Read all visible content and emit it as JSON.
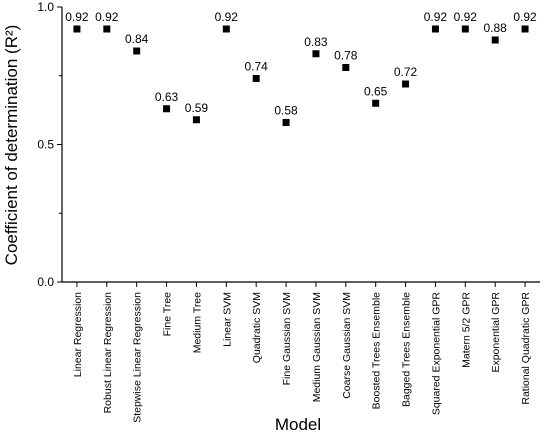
{
  "chart_data": {
    "type": "scatter",
    "title": "",
    "xlabel": "Model",
    "ylabel": "Coefficient of determination (R²)",
    "ylim": [
      0.0,
      1.0
    ],
    "yticks": [
      0.0,
      0.5,
      1.0
    ],
    "ytick_labels": [
      "0.0",
      "0.5",
      "1.0"
    ],
    "grid": false,
    "legend": "none",
    "marker": "square",
    "marker_color": "#000000",
    "categories": [
      "Linear Regression",
      "Robust Linear Regression",
      "Stepwise Linear Regression",
      "Fine Tree",
      "Medium Tree",
      "Linear SVM",
      "Quadratic SVM",
      "Fine Gaussian SVM",
      "Medium Gaussian SVM",
      "Coarse Gaussian SVM",
      "Boosted Trees Ensemble",
      "Bagged Trees Ensemble",
      "Squared Exponential GPR",
      "Matern 5/2 GPR",
      "Exponential GPR",
      "Rational Quadratic GPR"
    ],
    "values": [
      0.92,
      0.92,
      0.84,
      0.63,
      0.59,
      0.92,
      0.74,
      0.58,
      0.83,
      0.78,
      0.65,
      0.72,
      0.92,
      0.92,
      0.88,
      0.92
    ],
    "value_labels": [
      "0.92",
      "0.92",
      "0.84",
      "0.63",
      "0.59",
      "0.92",
      "0.74",
      "0.58",
      "0.83",
      "0.78",
      "0.65",
      "0.72",
      "0.92",
      "0.92",
      "0.88",
      "0.92"
    ]
  }
}
